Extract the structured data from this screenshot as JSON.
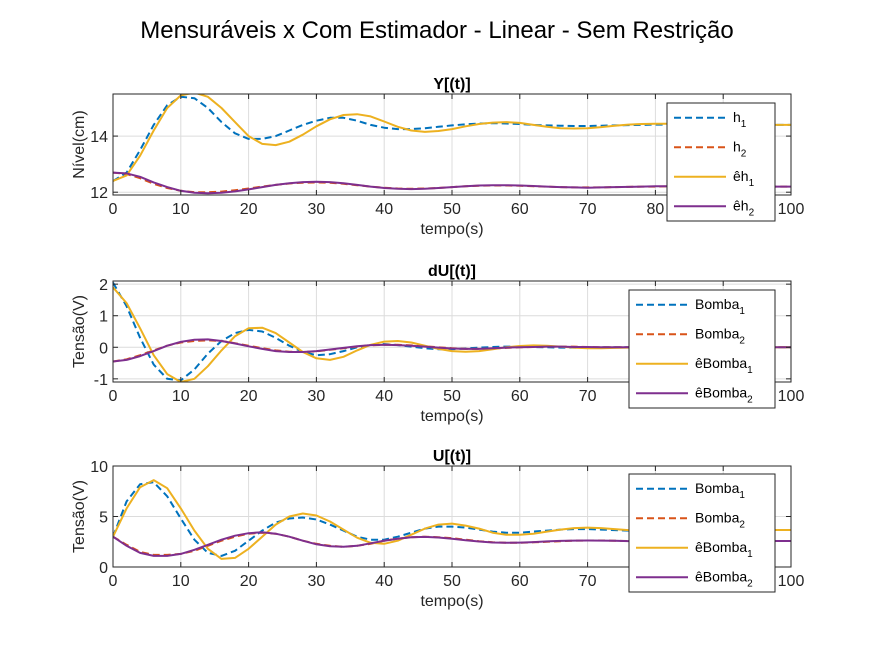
{
  "figure": {
    "title": "Mensuráveis x Com Estimador - Linear - Sem Restrição"
  },
  "colors": {
    "blue": "#0072BD",
    "orange": "#D95319",
    "yellow": "#EDB120",
    "purple": "#7E2F8E",
    "grid": "#dcdcdc",
    "axis": "#262626"
  },
  "chart_data": [
    {
      "type": "line",
      "title": "Y[(t)]",
      "xlabel": "tempo(s)",
      "ylabel": "Nível(cm)",
      "xlim": [
        0,
        100
      ],
      "ylim": [
        11.9,
        15.5
      ],
      "xticks": [
        "0",
        "10",
        "20",
        "30",
        "40",
        "50",
        "60",
        "70",
        "80",
        "90",
        "100"
      ],
      "yticks": [
        "12",
        "14"
      ],
      "ytick_values": [
        12,
        14
      ],
      "grid": true,
      "legend_position": "right",
      "x": [
        0,
        2,
        4,
        6,
        8,
        10,
        12,
        14,
        16,
        18,
        20,
        22,
        24,
        26,
        28,
        30,
        32,
        34,
        36,
        38,
        40,
        42,
        44,
        46,
        48,
        50,
        52,
        54,
        56,
        58,
        60,
        62,
        64,
        66,
        68,
        70,
        72,
        74,
        76,
        78,
        80,
        82,
        84,
        86,
        88,
        90,
        92,
        94,
        96,
        98,
        100
      ],
      "series": [
        {
          "name": "h",
          "sub": "1",
          "color": "blue",
          "dash": true,
          "values": [
            12.4,
            12.7,
            13.5,
            14.4,
            15.1,
            15.4,
            15.35,
            15.0,
            14.5,
            14.1,
            13.9,
            13.9,
            14.0,
            14.2,
            14.4,
            14.55,
            14.65,
            14.65,
            14.55,
            14.4,
            14.3,
            14.25,
            14.25,
            14.28,
            14.33,
            14.38,
            14.42,
            14.45,
            14.46,
            14.45,
            14.43,
            14.4,
            14.38,
            14.37,
            14.36,
            14.36,
            14.37,
            14.38,
            14.39,
            14.4,
            14.41,
            14.41,
            14.41,
            14.41,
            14.41,
            14.4,
            14.4,
            14.4,
            14.4,
            14.4,
            14.4
          ]
        },
        {
          "name": "h",
          "sub": "2",
          "color": "orange",
          "dash": true,
          "values": [
            12.7,
            12.65,
            12.5,
            12.3,
            12.15,
            12.05,
            12.0,
            12.0,
            12.02,
            12.07,
            12.13,
            12.2,
            12.26,
            12.31,
            12.34,
            12.35,
            12.34,
            12.3,
            12.25,
            12.2,
            12.16,
            12.13,
            12.12,
            12.13,
            12.15,
            12.18,
            12.21,
            12.23,
            12.24,
            12.24,
            12.23,
            12.21,
            12.2,
            12.18,
            12.17,
            12.17,
            12.17,
            12.18,
            12.19,
            12.2,
            12.2,
            12.21,
            12.21,
            12.21,
            12.2,
            12.2,
            12.2,
            12.2,
            12.2,
            12.2,
            12.2
          ]
        },
        {
          "name": "êh",
          "sub": "1",
          "color": "yellow",
          "dash": false,
          "values": [
            12.4,
            12.6,
            13.3,
            14.2,
            15.0,
            15.45,
            15.55,
            15.4,
            15.0,
            14.5,
            14.0,
            13.72,
            13.68,
            13.8,
            14.05,
            14.35,
            14.6,
            14.75,
            14.78,
            14.7,
            14.52,
            14.33,
            14.2,
            14.15,
            14.18,
            14.25,
            14.35,
            14.43,
            14.48,
            14.5,
            14.47,
            14.4,
            14.33,
            14.28,
            14.27,
            14.28,
            14.32,
            14.37,
            14.41,
            14.43,
            14.44,
            14.44,
            14.43,
            14.42,
            14.41,
            14.4,
            14.4,
            14.4,
            14.4,
            14.4,
            14.4
          ]
        },
        {
          "name": "êh",
          "sub": "2",
          "color": "purple",
          "dash": false,
          "values": [
            12.7,
            12.67,
            12.55,
            12.35,
            12.18,
            12.05,
            11.98,
            11.96,
            11.98,
            12.03,
            12.1,
            12.18,
            12.26,
            12.32,
            12.36,
            12.37,
            12.36,
            12.32,
            12.26,
            12.2,
            12.15,
            12.12,
            12.11,
            12.12,
            12.15,
            12.18,
            12.21,
            12.24,
            12.25,
            12.25,
            12.24,
            12.22,
            12.2,
            12.18,
            12.17,
            12.16,
            12.17,
            12.18,
            12.19,
            12.2,
            12.21,
            12.21,
            12.21,
            12.21,
            12.21,
            12.2,
            12.2,
            12.2,
            12.2,
            12.2,
            12.2
          ]
        }
      ]
    },
    {
      "type": "line",
      "title": "dU[(t)]",
      "xlabel": "tempo(s)",
      "ylabel": "Tensão(V)",
      "xlim": [
        0,
        100
      ],
      "ylim": [
        -1.1,
        2.1
      ],
      "xticks": [
        "0",
        "10",
        "20",
        "30",
        "40",
        "50",
        "60",
        "70",
        "80",
        "90",
        "100"
      ],
      "yticks": [
        "-1",
        "0",
        "1",
        "2"
      ],
      "ytick_values": [
        -1,
        0,
        1,
        2
      ],
      "grid": true,
      "legend_position": "right",
      "x": [
        0,
        2,
        4,
        6,
        8,
        10,
        12,
        14,
        16,
        18,
        20,
        22,
        24,
        26,
        28,
        30,
        32,
        34,
        36,
        38,
        40,
        42,
        44,
        46,
        48,
        50,
        52,
        54,
        56,
        58,
        60,
        62,
        64,
        66,
        68,
        70,
        72,
        74,
        76,
        78,
        80,
        82,
        84,
        86,
        88,
        90,
        92,
        94,
        96,
        98,
        100
      ],
      "series": [
        {
          "name": "Bomba",
          "sub": "1",
          "color": "blue",
          "dash": true,
          "values": [
            2.05,
            1.3,
            0.3,
            -0.55,
            -1.0,
            -1.05,
            -0.7,
            -0.2,
            0.2,
            0.45,
            0.55,
            0.5,
            0.3,
            0.05,
            -0.15,
            -0.25,
            -0.22,
            -0.12,
            0.0,
            0.08,
            0.1,
            0.07,
            0.02,
            -0.03,
            -0.06,
            -0.06,
            -0.04,
            -0.01,
            0.01,
            0.02,
            0.02,
            0.01,
            0.0,
            -0.01,
            -0.01,
            -0.01,
            0.0,
            0.0,
            0.0,
            0.0,
            0.0,
            0.0,
            0.0,
            0.0,
            0.0,
            0.0,
            0.0,
            0.0,
            0.0,
            0.0,
            0.0
          ]
        },
        {
          "name": "Bomba",
          "sub": "2",
          "color": "orange",
          "dash": true,
          "values": [
            -0.45,
            -0.38,
            -0.25,
            -0.1,
            0.05,
            0.15,
            0.2,
            0.22,
            0.2,
            0.13,
            0.05,
            -0.03,
            -0.1,
            -0.14,
            -0.15,
            -0.13,
            -0.08,
            -0.03,
            0.02,
            0.06,
            0.08,
            0.08,
            0.06,
            0.03,
            0.0,
            -0.03,
            -0.05,
            -0.05,
            -0.04,
            -0.02,
            0.0,
            0.01,
            0.02,
            0.02,
            0.02,
            0.01,
            0.0,
            0.0,
            0.0,
            0.0,
            0.0,
            0.0,
            0.0,
            0.0,
            0.0,
            0.0,
            0.0,
            0.0,
            0.0,
            0.0,
            0.0
          ]
        },
        {
          "name": "êBomba",
          "sub": "1",
          "color": "yellow",
          "dash": false,
          "values": [
            1.9,
            1.4,
            0.6,
            -0.25,
            -0.85,
            -1.1,
            -1.0,
            -0.6,
            -0.1,
            0.35,
            0.6,
            0.62,
            0.45,
            0.15,
            -0.15,
            -0.35,
            -0.4,
            -0.3,
            -0.1,
            0.08,
            0.18,
            0.2,
            0.15,
            0.05,
            -0.05,
            -0.12,
            -0.14,
            -0.12,
            -0.06,
            0.0,
            0.04,
            0.06,
            0.05,
            0.02,
            -0.01,
            -0.03,
            -0.03,
            -0.02,
            -0.01,
            0.0,
            0.01,
            0.01,
            0.01,
            0.0,
            0.0,
            0.0,
            0.0,
            0.0,
            0.0,
            0.0,
            0.0
          ]
        },
        {
          "name": "êBomba",
          "sub": "2",
          "color": "purple",
          "dash": false,
          "values": [
            -0.45,
            -0.4,
            -0.28,
            -0.12,
            0.05,
            0.17,
            0.24,
            0.25,
            0.2,
            0.12,
            0.03,
            -0.05,
            -0.12,
            -0.15,
            -0.15,
            -0.12,
            -0.07,
            -0.02,
            0.03,
            0.07,
            0.08,
            0.07,
            0.05,
            0.02,
            -0.01,
            -0.04,
            -0.05,
            -0.05,
            -0.03,
            -0.01,
            0.0,
            0.01,
            0.02,
            0.02,
            0.01,
            0.01,
            0.0,
            0.0,
            0.0,
            0.0,
            0.0,
            0.0,
            0.0,
            0.0,
            0.0,
            0.0,
            0.0,
            0.0,
            0.0,
            0.0,
            0.0
          ]
        }
      ]
    },
    {
      "type": "line",
      "title": "U[(t)]",
      "xlabel": "tempo(s)",
      "ylabel": "Tensão(V)",
      "xlim": [
        0,
        100
      ],
      "ylim": [
        0,
        10
      ],
      "xticks": [
        "0",
        "10",
        "20",
        "30",
        "40",
        "50",
        "60",
        "70",
        "80",
        "90",
        "100"
      ],
      "yticks": [
        "0",
        "5",
        "10"
      ],
      "ytick_values": [
        0,
        5,
        10
      ],
      "grid": true,
      "legend_position": "right",
      "x": [
        0,
        2,
        4,
        6,
        8,
        10,
        12,
        14,
        16,
        18,
        20,
        22,
        24,
        26,
        28,
        30,
        32,
        34,
        36,
        38,
        40,
        42,
        44,
        46,
        48,
        50,
        52,
        54,
        56,
        58,
        60,
        62,
        64,
        66,
        68,
        70,
        72,
        74,
        76,
        78,
        80,
        82,
        84,
        86,
        88,
        90,
        92,
        94,
        96,
        98,
        100
      ],
      "series": [
        {
          "name": "Bomba",
          "sub": "1",
          "color": "blue",
          "dash": true,
          "values": [
            3.0,
            6.5,
            8.2,
            8.4,
            7.0,
            4.8,
            2.7,
            1.4,
            1.1,
            1.6,
            2.6,
            3.6,
            4.4,
            4.8,
            4.9,
            4.7,
            4.2,
            3.6,
            3.0,
            2.7,
            2.7,
            3.0,
            3.4,
            3.8,
            4.0,
            4.0,
            3.9,
            3.7,
            3.5,
            3.4,
            3.4,
            3.5,
            3.6,
            3.7,
            3.75,
            3.75,
            3.7,
            3.65,
            3.6,
            3.6,
            3.62,
            3.65,
            3.67,
            3.68,
            3.68,
            3.68,
            3.67,
            3.66,
            3.66,
            3.66,
            3.66
          ]
        },
        {
          "name": "Bomba",
          "sub": "2",
          "color": "orange",
          "dash": true,
          "values": [
            3.0,
            2.2,
            1.5,
            1.2,
            1.2,
            1.3,
            1.6,
            2.1,
            2.6,
            3.0,
            3.3,
            3.4,
            3.3,
            3.0,
            2.6,
            2.3,
            2.1,
            2.0,
            2.1,
            2.3,
            2.6,
            2.8,
            2.95,
            3.0,
            2.95,
            2.85,
            2.7,
            2.55,
            2.45,
            2.4,
            2.4,
            2.45,
            2.5,
            2.55,
            2.6,
            2.62,
            2.62,
            2.6,
            2.57,
            2.55,
            2.54,
            2.55,
            2.56,
            2.57,
            2.58,
            2.58,
            2.58,
            2.57,
            2.57,
            2.57,
            2.57
          ]
        },
        {
          "name": "êBomba",
          "sub": "1",
          "color": "yellow",
          "dash": false,
          "values": [
            3.0,
            5.8,
            7.9,
            8.6,
            7.8,
            5.8,
            3.6,
            1.8,
            0.8,
            0.9,
            1.8,
            3.0,
            4.2,
            5.0,
            5.3,
            5.1,
            4.5,
            3.7,
            2.9,
            2.4,
            2.3,
            2.6,
            3.2,
            3.8,
            4.2,
            4.3,
            4.1,
            3.8,
            3.4,
            3.2,
            3.2,
            3.3,
            3.5,
            3.7,
            3.85,
            3.9,
            3.85,
            3.75,
            3.65,
            3.6,
            3.6,
            3.63,
            3.67,
            3.7,
            3.71,
            3.71,
            3.7,
            3.68,
            3.67,
            3.66,
            3.66
          ]
        },
        {
          "name": "êBomba",
          "sub": "2",
          "color": "purple",
          "dash": false,
          "values": [
            3.0,
            2.1,
            1.4,
            1.1,
            1.1,
            1.3,
            1.7,
            2.2,
            2.7,
            3.1,
            3.35,
            3.45,
            3.3,
            3.0,
            2.6,
            2.25,
            2.05,
            2.0,
            2.1,
            2.35,
            2.6,
            2.8,
            2.95,
            2.98,
            2.92,
            2.8,
            2.65,
            2.52,
            2.43,
            2.4,
            2.42,
            2.47,
            2.53,
            2.58,
            2.61,
            2.62,
            2.61,
            2.59,
            2.56,
            2.54,
            2.54,
            2.55,
            2.56,
            2.57,
            2.58,
            2.58,
            2.58,
            2.57,
            2.57,
            2.57,
            2.57
          ]
        }
      ]
    }
  ]
}
